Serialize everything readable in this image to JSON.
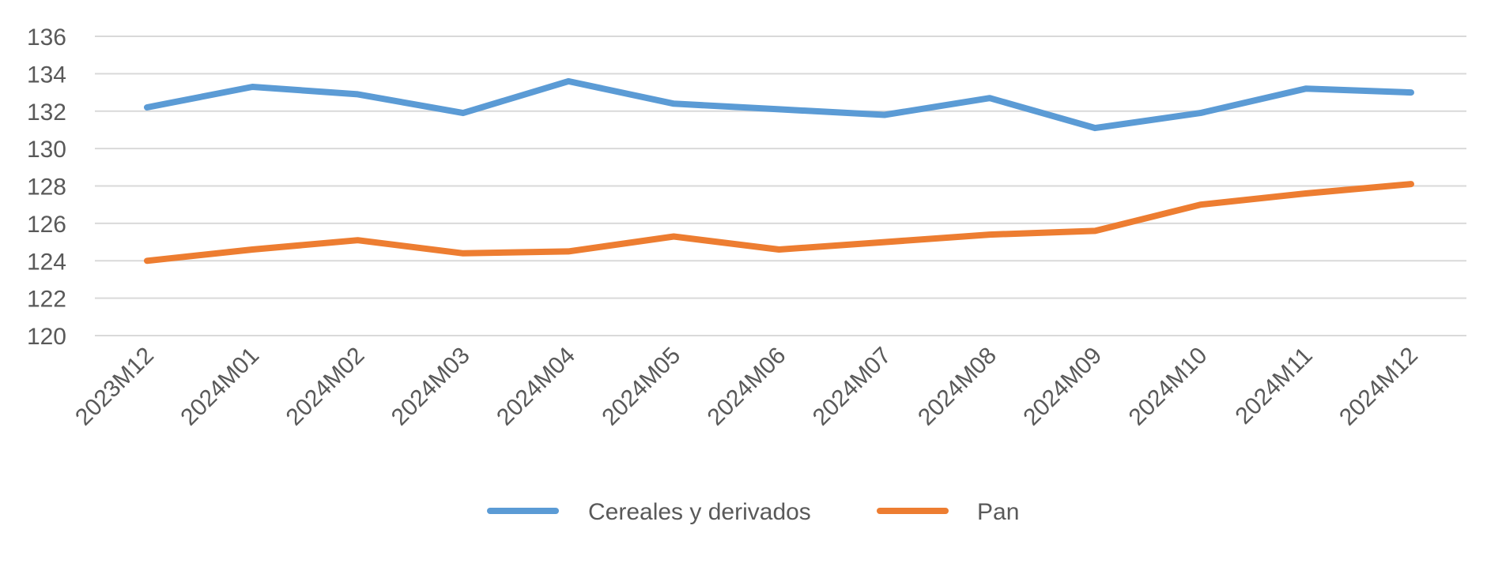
{
  "chart_data": {
    "type": "line",
    "title": "",
    "xlabel": "",
    "ylabel": "",
    "categories": [
      "2023M12",
      "2024M01",
      "2024M02",
      "2024M03",
      "2024M04",
      "2024M05",
      "2024M06",
      "2024M07",
      "2024M08",
      "2024M09",
      "2024M10",
      "2024M11",
      "2024M12"
    ],
    "ylim": [
      120,
      136
    ],
    "yticks": [
      120,
      122,
      124,
      126,
      128,
      130,
      132,
      134,
      136
    ],
    "grid": true,
    "legend_position": "bottom",
    "series": [
      {
        "name": "Cereales y derivados",
        "color": "#5b9bd5",
        "values": [
          132.2,
          133.3,
          132.9,
          131.9,
          133.6,
          132.4,
          132.1,
          131.8,
          132.7,
          131.1,
          131.9,
          133.2,
          133.0
        ]
      },
      {
        "name": "Pan",
        "color": "#ed7d31",
        "values": [
          124.0,
          124.6,
          125.1,
          124.4,
          124.5,
          125.3,
          124.6,
          125.0,
          125.4,
          125.6,
          127.0,
          127.6,
          128.1
        ]
      }
    ]
  }
}
